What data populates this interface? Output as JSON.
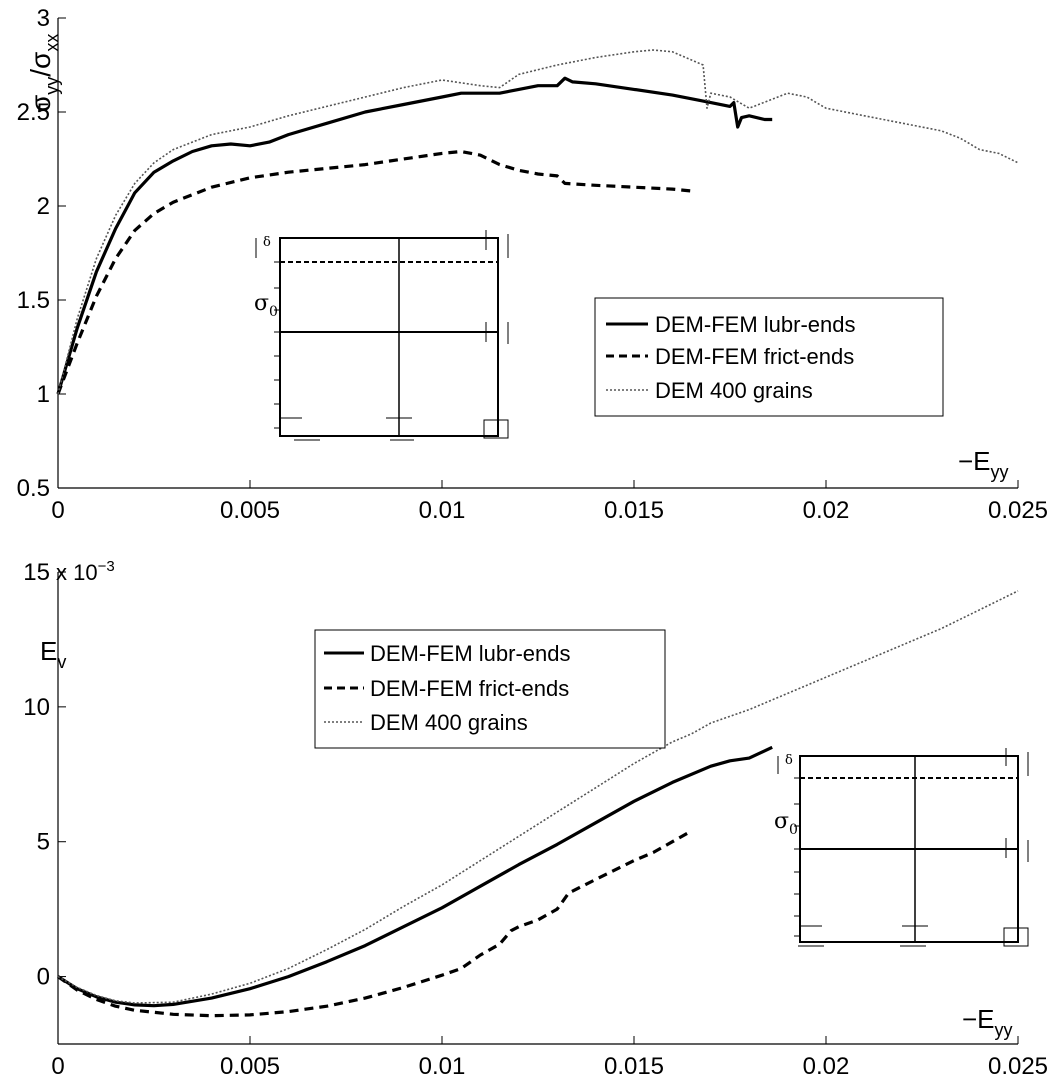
{
  "chart_data": [
    {
      "type": "line",
      "title": "",
      "xlabel": "−E",
      "xlabel_sub": "yy",
      "ylabel_main": "σ",
      "ylabel_sub1": "yy",
      "ylabel_mid": "/σ",
      "ylabel_sub2": "xx",
      "xlim": [
        0,
        0.025
      ],
      "ylim": [
        0.5,
        3
      ],
      "xticks": [
        "0",
        "0.005",
        "0.01",
        "0.015",
        "0.02",
        "0.025"
      ],
      "xtick_values": [
        0,
        0.005,
        0.01,
        0.015,
        0.02,
        0.025
      ],
      "yticks": [
        "0.5",
        "1",
        "1.5",
        "2",
        "2.5",
        "3"
      ],
      "ytick_values": [
        0.5,
        1,
        1.5,
        2,
        2.5,
        3
      ],
      "legend_position": "center-right",
      "grid": false,
      "series": [
        {
          "name": "DEM-FEM lubr-ends",
          "style": "solid",
          "x": [
            0,
            0.0005,
            0.001,
            0.0015,
            0.002,
            0.0025,
            0.003,
            0.0035,
            0.004,
            0.0045,
            0.005,
            0.0055,
            0.006,
            0.007,
            0.008,
            0.009,
            0.01,
            0.0105,
            0.011,
            0.0115,
            0.012,
            0.0125,
            0.013,
            0.0132,
            0.0134,
            0.014,
            0.015,
            0.016,
            0.017,
            0.0175,
            0.0176,
            0.0177,
            0.0178,
            0.018,
            0.0184,
            0.0186
          ],
          "y": [
            1.0,
            1.35,
            1.65,
            1.88,
            2.07,
            2.18,
            2.24,
            2.29,
            2.32,
            2.33,
            2.32,
            2.34,
            2.38,
            2.44,
            2.5,
            2.54,
            2.58,
            2.6,
            2.6,
            2.6,
            2.62,
            2.64,
            2.64,
            2.68,
            2.66,
            2.65,
            2.62,
            2.59,
            2.55,
            2.53,
            2.55,
            2.42,
            2.47,
            2.48,
            2.46,
            2.46
          ]
        },
        {
          "name": "DEM-FEM frict-ends",
          "style": "dashed",
          "x": [
            0,
            0.0005,
            0.001,
            0.0015,
            0.002,
            0.0025,
            0.003,
            0.004,
            0.005,
            0.006,
            0.007,
            0.008,
            0.009,
            0.01,
            0.0105,
            0.011,
            0.0115,
            0.012,
            0.0125,
            0.013,
            0.0132,
            0.014,
            0.015,
            0.016,
            0.0165
          ],
          "y": [
            1.0,
            1.27,
            1.52,
            1.72,
            1.87,
            1.96,
            2.02,
            2.1,
            2.15,
            2.18,
            2.2,
            2.22,
            2.25,
            2.28,
            2.29,
            2.27,
            2.22,
            2.19,
            2.17,
            2.16,
            2.12,
            2.11,
            2.1,
            2.09,
            2.08
          ]
        },
        {
          "name": "DEM 400 grains",
          "style": "dotted",
          "x": [
            0,
            0.0005,
            0.001,
            0.0015,
            0.002,
            0.0025,
            0.003,
            0.004,
            0.005,
            0.006,
            0.007,
            0.008,
            0.009,
            0.0095,
            0.01,
            0.011,
            0.0115,
            0.012,
            0.013,
            0.014,
            0.015,
            0.0155,
            0.016,
            0.0168,
            0.0169,
            0.017,
            0.0175,
            0.018,
            0.0185,
            0.019,
            0.0195,
            0.02,
            0.021,
            0.022,
            0.023,
            0.0235,
            0.024,
            0.0245,
            0.025
          ],
          "y": [
            1.0,
            1.4,
            1.72,
            1.95,
            2.12,
            2.23,
            2.3,
            2.38,
            2.42,
            2.48,
            2.53,
            2.58,
            2.63,
            2.65,
            2.67,
            2.64,
            2.63,
            2.7,
            2.75,
            2.79,
            2.82,
            2.83,
            2.82,
            2.75,
            2.52,
            2.6,
            2.58,
            2.52,
            2.56,
            2.6,
            2.58,
            2.52,
            2.48,
            2.44,
            2.4,
            2.36,
            2.3,
            2.28,
            2.23
          ]
        }
      ],
      "inset_labels": {
        "delta": "δ",
        "sigma": "σ",
        "sigma_sub": "0"
      }
    },
    {
      "type": "line",
      "title": "",
      "xlabel": "−E",
      "xlabel_sub": "yy",
      "ylabel_main": "E",
      "ylabel_sub1": "v",
      "exponent_label": "x 10",
      "exponent_power": "−3",
      "xlim": [
        0,
        0.025
      ],
      "ylim": [
        -2.5,
        15
      ],
      "xticks": [
        "0",
        "0.005",
        "0.01",
        "0.015",
        "0.02",
        "0.025"
      ],
      "xtick_values": [
        0,
        0.005,
        0.01,
        0.015,
        0.02,
        0.025
      ],
      "yticks": [
        "0",
        "5",
        "10",
        "15"
      ],
      "ytick_values": [
        0,
        5,
        10,
        15
      ],
      "legend_position": "top-left",
      "grid": false,
      "series": [
        {
          "name": "DEM-FEM lubr-ends",
          "style": "solid",
          "x": [
            0,
            0.0005,
            0.001,
            0.0015,
            0.002,
            0.0025,
            0.003,
            0.004,
            0.005,
            0.006,
            0.007,
            0.008,
            0.009,
            0.01,
            0.011,
            0.012,
            0.013,
            0.014,
            0.015,
            0.016,
            0.017,
            0.0175,
            0.018,
            0.0186
          ],
          "y": [
            0,
            -0.45,
            -0.75,
            -0.95,
            -1.05,
            -1.08,
            -1.03,
            -0.8,
            -0.45,
            0,
            0.55,
            1.15,
            1.85,
            2.55,
            3.35,
            4.15,
            4.9,
            5.7,
            6.5,
            7.2,
            7.8,
            8.0,
            8.1,
            8.5
          ]
        },
        {
          "name": "DEM-FEM frict-ends",
          "style": "dashed",
          "x": [
            0,
            0.0005,
            0.001,
            0.0015,
            0.002,
            0.003,
            0.004,
            0.005,
            0.006,
            0.007,
            0.008,
            0.009,
            0.01,
            0.0105,
            0.011,
            0.0115,
            0.0118,
            0.012,
            0.0125,
            0.013,
            0.0133,
            0.014,
            0.015,
            0.0155,
            0.016,
            0.0165
          ],
          "y": [
            0,
            -0.5,
            -0.85,
            -1.1,
            -1.25,
            -1.4,
            -1.45,
            -1.42,
            -1.3,
            -1.1,
            -0.8,
            -0.4,
            0.05,
            0.3,
            0.8,
            1.2,
            1.7,
            1.85,
            2.1,
            2.5,
            3.1,
            3.6,
            4.3,
            4.6,
            5.0,
            5.4
          ]
        },
        {
          "name": "DEM 400 grains",
          "style": "dotted",
          "x": [
            0,
            0.0005,
            0.001,
            0.0015,
            0.002,
            0.003,
            0.004,
            0.005,
            0.006,
            0.007,
            0.008,
            0.009,
            0.01,
            0.011,
            0.012,
            0.013,
            0.014,
            0.015,
            0.016,
            0.0165,
            0.017,
            0.018,
            0.019,
            0.02,
            0.021,
            0.022,
            0.023,
            0.024,
            0.025
          ],
          "y": [
            0,
            -0.4,
            -0.7,
            -0.9,
            -0.98,
            -0.95,
            -0.65,
            -0.25,
            0.3,
            1.0,
            1.75,
            2.6,
            3.4,
            4.3,
            5.2,
            6.1,
            7.0,
            7.9,
            8.7,
            9.0,
            9.4,
            9.9,
            10.5,
            11.1,
            11.7,
            12.3,
            12.9,
            13.6,
            14.3
          ]
        }
      ],
      "inset_labels": {
        "delta": "δ",
        "sigma": "σ",
        "sigma_sub": "0"
      }
    }
  ]
}
